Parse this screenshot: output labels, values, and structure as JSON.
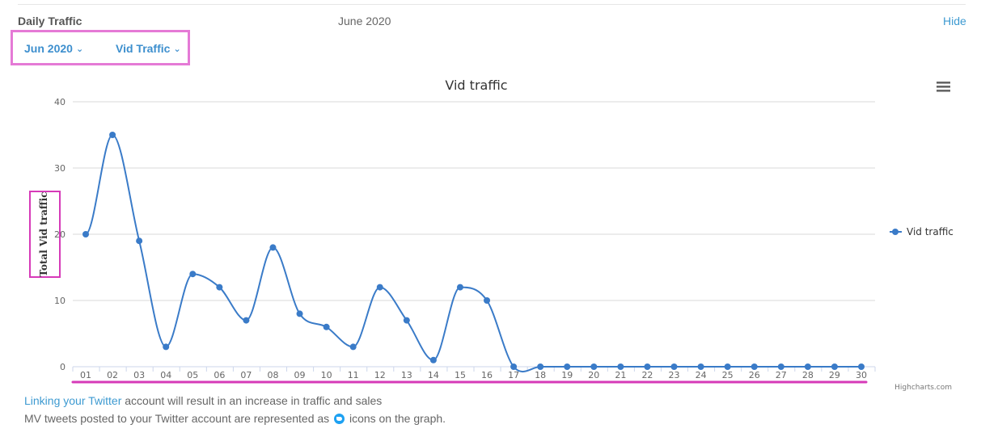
{
  "header": {
    "title": "Daily Traffic",
    "period": "June 2020",
    "hide_label": "Hide"
  },
  "filters": {
    "month_label": "Jun 2020",
    "metric_label": "Vid Traffic"
  },
  "chart_data": {
    "type": "line",
    "title": "Vid traffic",
    "xlabel": "",
    "ylabel": "Total Vid traffic",
    "categories": [
      "01",
      "02",
      "03",
      "04",
      "05",
      "06",
      "07",
      "08",
      "09",
      "10",
      "11",
      "12",
      "13",
      "14",
      "15",
      "16",
      "17",
      "18",
      "19",
      "20",
      "21",
      "22",
      "23",
      "24",
      "25",
      "26",
      "27",
      "28",
      "29",
      "30"
    ],
    "series": [
      {
        "name": "Vid traffic",
        "values": [
          20,
          35,
          19,
          3,
          14,
          12,
          7,
          18,
          8,
          6,
          3,
          12,
          7,
          1,
          12,
          10,
          0,
          0,
          0,
          0,
          0,
          0,
          0,
          0,
          0,
          0,
          0,
          0,
          0,
          0
        ]
      }
    ],
    "ylim": [
      0,
      40
    ],
    "yticks": [
      0,
      10,
      20,
      30,
      40
    ],
    "grid": true,
    "legend_position": "right",
    "credits": "Highcharts.com",
    "colors": {
      "series": "#3a7bc8",
      "grid": "#d8d8d8",
      "axis": "#666666",
      "annotation": "#d63ab8"
    }
  },
  "footer": {
    "link_text": "Linking your Twitter",
    "line1_rest": " account will result in an increase in traffic and sales",
    "line2_before": "MV tweets posted to your Twitter account are represented as ",
    "line2_after": " icons on the graph.",
    "icon": "twitter-icon"
  }
}
